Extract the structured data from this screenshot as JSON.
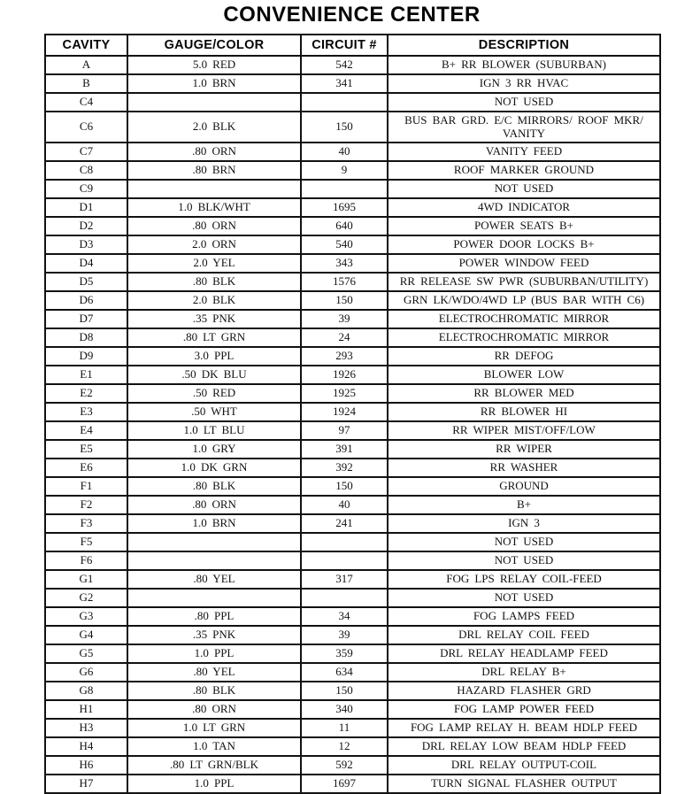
{
  "title": "CONVENIENCE CENTER",
  "table": {
    "headers": [
      "CAVITY",
      "GAUGE/COLOR",
      "CIRCUIT #",
      "DESCRIPTION"
    ],
    "rows": [
      {
        "cavity": "A",
        "gauge": "5.0 RED",
        "circuit": "542",
        "description": "B+ RR BLOWER (SUBURBAN)"
      },
      {
        "cavity": "B",
        "gauge": "1.0 BRN",
        "circuit": "341",
        "description": "IGN 3 RR HVAC"
      },
      {
        "cavity": "C4",
        "gauge": "",
        "circuit": "",
        "description": "NOT USED"
      },
      {
        "cavity": "C6",
        "gauge": "2.0 BLK",
        "circuit": "150",
        "description": "BUS BAR GRD. E/C MIRRORS/ ROOF MKR/ VANITY"
      },
      {
        "cavity": "C7",
        "gauge": ".80 ORN",
        "circuit": "40",
        "description": "VANITY FEED"
      },
      {
        "cavity": "C8",
        "gauge": ".80 BRN",
        "circuit": "9",
        "description": "ROOF MARKER GROUND"
      },
      {
        "cavity": "C9",
        "gauge": "",
        "circuit": "",
        "description": "NOT USED"
      },
      {
        "cavity": "D1",
        "gauge": "1.0 BLK/WHT",
        "circuit": "1695",
        "description": "4WD INDICATOR"
      },
      {
        "cavity": "D2",
        "gauge": ".80 ORN",
        "circuit": "640",
        "description": "POWER SEATS B+"
      },
      {
        "cavity": "D3",
        "gauge": "2.0 ORN",
        "circuit": "540",
        "description": "POWER DOOR LOCKS B+"
      },
      {
        "cavity": "D4",
        "gauge": "2.0 YEL",
        "circuit": "343",
        "description": "POWER WINDOW FEED"
      },
      {
        "cavity": "D5",
        "gauge": ".80 BLK",
        "circuit": "1576",
        "description": "RR RELEASE SW PWR (SUBURBAN/UTILITY)"
      },
      {
        "cavity": "D6",
        "gauge": "2.0 BLK",
        "circuit": "150",
        "description": "GRN LK/WDO/4WD LP (BUS BAR WITH C6)"
      },
      {
        "cavity": "D7",
        "gauge": ".35 PNK",
        "circuit": "39",
        "description": "ELECTROCHROMATIC MIRROR"
      },
      {
        "cavity": "D8",
        "gauge": ".80 LT GRN",
        "circuit": "24",
        "description": "ELECTROCHROMATIC MIRROR"
      },
      {
        "cavity": "D9",
        "gauge": "3.0 PPL",
        "circuit": "293",
        "description": "RR DEFOG"
      },
      {
        "cavity": "E1",
        "gauge": ".50 DK BLU",
        "circuit": "1926",
        "description": "BLOWER LOW"
      },
      {
        "cavity": "E2",
        "gauge": ".50 RED",
        "circuit": "1925",
        "description": "RR BLOWER MED"
      },
      {
        "cavity": "E3",
        "gauge": ".50 WHT",
        "circuit": "1924",
        "description": "RR BLOWER HI"
      },
      {
        "cavity": "E4",
        "gauge": "1.0 LT BLU",
        "circuit": "97",
        "description": "RR WIPER MIST/OFF/LOW"
      },
      {
        "cavity": "E5",
        "gauge": "1.0 GRY",
        "circuit": "391",
        "description": "RR WIPER"
      },
      {
        "cavity": "E6",
        "gauge": "1.0 DK GRN",
        "circuit": "392",
        "description": "RR WASHER"
      },
      {
        "cavity": "F1",
        "gauge": ".80 BLK",
        "circuit": "150",
        "description": "GROUND"
      },
      {
        "cavity": "F2",
        "gauge": ".80 ORN",
        "circuit": "40",
        "description": "B+"
      },
      {
        "cavity": "F3",
        "gauge": "1.0 BRN",
        "circuit": "241",
        "description": "IGN 3"
      },
      {
        "cavity": "F5",
        "gauge": "",
        "circuit": "",
        "description": "NOT USED"
      },
      {
        "cavity": "F6",
        "gauge": "",
        "circuit": "",
        "description": "NOT USED"
      },
      {
        "cavity": "G1",
        "gauge": ".80 YEL",
        "circuit": "317",
        "description": "FOG LPS RELAY COIL-FEED"
      },
      {
        "cavity": "G2",
        "gauge": "",
        "circuit": "",
        "description": "NOT USED"
      },
      {
        "cavity": "G3",
        "gauge": ".80 PPL",
        "circuit": "34",
        "description": "FOG LAMPS FEED"
      },
      {
        "cavity": "G4",
        "gauge": ".35 PNK",
        "circuit": "39",
        "description": "DRL RELAY COIL FEED"
      },
      {
        "cavity": "G5",
        "gauge": "1.0 PPL",
        "circuit": "359",
        "description": "DRL RELAY HEADLAMP FEED"
      },
      {
        "cavity": "G6",
        "gauge": ".80 YEL",
        "circuit": "634",
        "description": "DRL RELAY B+"
      },
      {
        "cavity": "G8",
        "gauge": ".80 BLK",
        "circuit": "150",
        "description": "HAZARD FLASHER GRD"
      },
      {
        "cavity": "H1",
        "gauge": ".80 ORN",
        "circuit": "340",
        "description": "FOG LAMP POWER FEED"
      },
      {
        "cavity": "H3",
        "gauge": "1.0 LT GRN",
        "circuit": "11",
        "description": "FOG LAMP RELAY H. BEAM HDLP FEED"
      },
      {
        "cavity": "H4",
        "gauge": "1.0 TAN",
        "circuit": "12",
        "description": "DRL RELAY LOW BEAM HDLP FEED"
      },
      {
        "cavity": "H6",
        "gauge": ".80 LT GRN/BLK",
        "circuit": "592",
        "description": "DRL RELAY OUTPUT-COIL"
      },
      {
        "cavity": "H7",
        "gauge": "1.0 PPL",
        "circuit": "1697",
        "description": "TURN SIGNAL FLASHER OUTPUT"
      }
    ]
  }
}
